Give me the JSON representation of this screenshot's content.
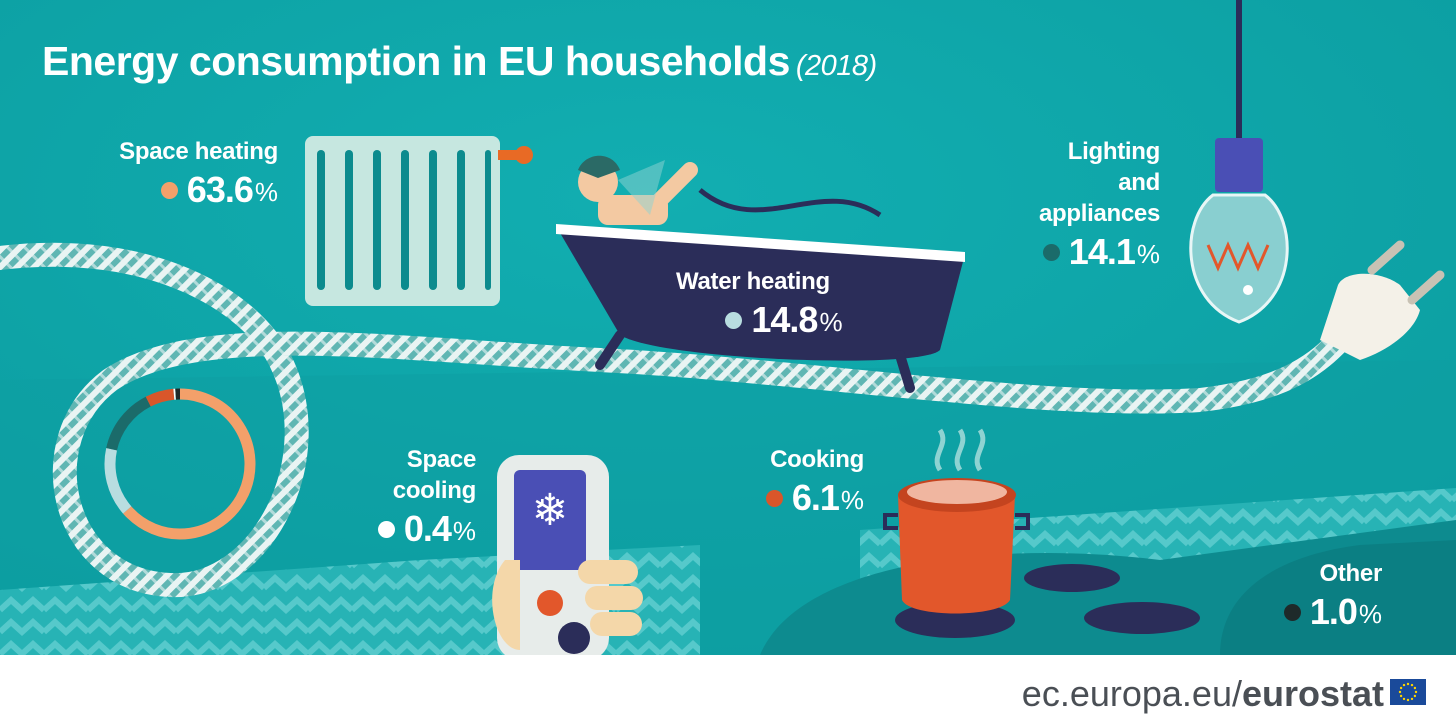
{
  "title": "Energy consumption in EU households",
  "title_year": "(2018)",
  "chart_data": {
    "type": "pie",
    "title": "Energy consumption in EU households",
    "subtitle": "(2018)",
    "unit": "%",
    "slices": [
      {
        "label": "Space heating",
        "value": 63.6,
        "color": "#f3a06a"
      },
      {
        "label": "Water heating",
        "value": 14.8,
        "color": "#b8dde0"
      },
      {
        "label": "Lighting and appliances",
        "value": 14.1,
        "color": "#1b6b6a"
      },
      {
        "label": "Cooking",
        "value": 6.1,
        "color": "#d9562a"
      },
      {
        "label": "Space cooling",
        "value": 0.4,
        "color": "#ffffff"
      },
      {
        "label": "Other",
        "value": 1.0,
        "color": "#1e2a2a"
      }
    ]
  },
  "categories": {
    "space_heating": {
      "label": "Space heating",
      "value": "63.6",
      "unit": "%",
      "color": "#f3a06a"
    },
    "water_heating": {
      "label": "Water heating",
      "value": "14.8",
      "unit": "%",
      "color": "#b8dde0"
    },
    "lighting": {
      "label_1": "Lighting",
      "label_2": "and",
      "label_3": "appliances",
      "value": "14.1",
      "unit": "%",
      "color": "#1b6b6a"
    },
    "space_cooling": {
      "label_1": "Space",
      "label_2": "cooling",
      "value": "0.4",
      "unit": "%",
      "color": "#ffffff"
    },
    "cooking": {
      "label": "Cooking",
      "value": "6.1",
      "unit": "%",
      "color": "#d9562a"
    },
    "other": {
      "label": "Other",
      "value": "1.0",
      "unit": "%",
      "color": "#1e2a2a"
    }
  },
  "footer": {
    "url_prefix": "ec.europa.eu/",
    "url_brand": "eurostat"
  },
  "colors": {
    "background": "#0fa5a8",
    "dark_teal": "#0e7f82",
    "bath": "#2b2d59",
    "accent_orange": "#d9562a"
  }
}
